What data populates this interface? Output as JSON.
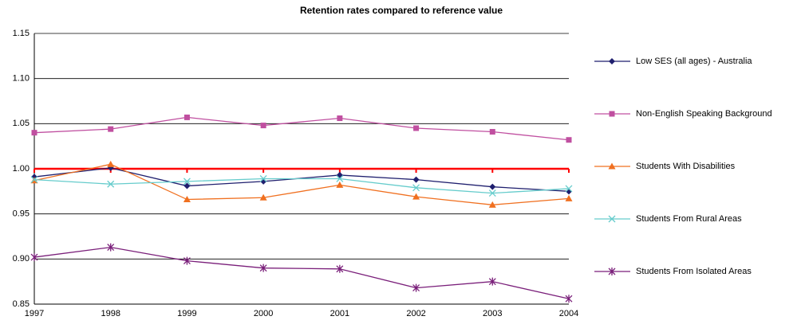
{
  "chart_data": {
    "type": "line",
    "title": "Retention rates compared to reference value",
    "categories": [
      "1997",
      "1998",
      "1999",
      "2000",
      "2001",
      "2002",
      "2003",
      "2004"
    ],
    "series": [
      {
        "name": "Low  SES (all ages) - Australia",
        "color": "#1f1f6e",
        "marker": "diamond",
        "values": [
          0.991,
          1.001,
          0.981,
          0.986,
          0.993,
          0.988,
          0.98,
          0.975
        ]
      },
      {
        "name": "Non-English Speaking Background",
        "color": "#c04fa0",
        "marker": "square",
        "values": [
          1.04,
          1.044,
          1.057,
          1.048,
          1.056,
          1.045,
          1.041,
          1.032
        ]
      },
      {
        "name": "Students With Disabilities",
        "color": "#f07020",
        "marker": "triangle",
        "values": [
          0.987,
          1.005,
          0.966,
          0.968,
          0.982,
          0.969,
          0.96,
          0.967
        ]
      },
      {
        "name": "Students From Rural Areas",
        "color": "#66cccc",
        "marker": "x",
        "values": [
          0.988,
          0.983,
          0.986,
          0.989,
          0.989,
          0.979,
          0.973,
          0.978
        ]
      },
      {
        "name": "Students From Isolated Areas",
        "color": "#7a1f7a",
        "marker": "star",
        "values": [
          0.902,
          0.913,
          0.898,
          0.89,
          0.889,
          0.868,
          0.875,
          0.856
        ]
      }
    ],
    "reference": {
      "color": "#ff0000",
      "values": [
        1,
        1,
        1,
        1,
        1,
        1,
        1,
        1
      ]
    },
    "ylim": [
      0.85,
      1.15
    ],
    "yticks": [
      0.85,
      {
        "value": 0.9,
        "label": "0.90"
      },
      0.95,
      {
        "value": 1,
        "label": "1.00"
      },
      1.05,
      {
        "value": 1.1,
        "label": "1.10"
      },
      1.15
    ],
    "grid": true,
    "legend": "right"
  }
}
